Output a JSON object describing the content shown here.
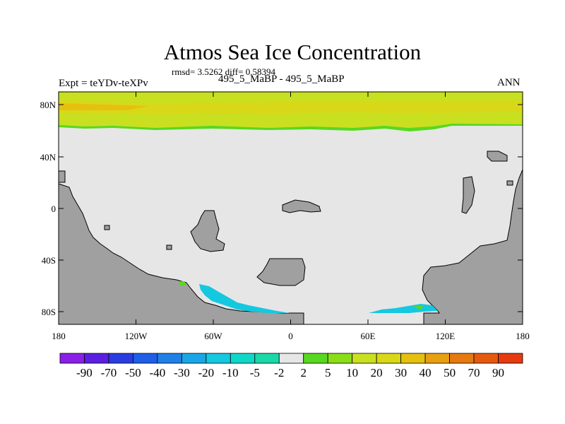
{
  "title": "Atmos Sea Ice Concentration",
  "subtitle": "rmsd= 3.5262 diff= 0.58394",
  "left_label": "Expt = teYDv-teXPv",
  "center_label": "495_5_MaBP - 495_5_MaBP",
  "right_label": "ANN",
  "lat_ticks": [
    "80N",
    "40N",
    "0",
    "40S",
    "80S"
  ],
  "lon_ticks": [
    "180",
    "120W",
    "60W",
    "0",
    "60E",
    "120E",
    "180"
  ],
  "colorbar": {
    "labels": [
      "-90",
      "-70",
      "-50",
      "-40",
      "-30",
      "-20",
      "-10",
      "-5",
      "-2",
      "2",
      "5",
      "10",
      "20",
      "30",
      "40",
      "50",
      "70",
      "90"
    ],
    "colors": [
      "#8a20e6",
      "#5a1fe0",
      "#2a3ce0",
      "#1f5ee6",
      "#2080e6",
      "#1aa6e6",
      "#14c8e0",
      "#10d8c8",
      "#1ad8a8",
      "#e6e6e6",
      "#58d820",
      "#8ade18",
      "#c8e020",
      "#d8d818",
      "#e6c010",
      "#e6a010",
      "#e67a10",
      "#e65a10",
      "#e63a10"
    ]
  },
  "map_colors": {
    "land": "#a0a0a0",
    "ocean": "#e6e6e6",
    "arctic_ice": "#c8e020",
    "arctic_ice_high": "#d8d818",
    "arctic_ice_peak": "#e6c010",
    "ice_edge": "#58d820",
    "southern_ice_loss": "#14c8e0"
  }
}
